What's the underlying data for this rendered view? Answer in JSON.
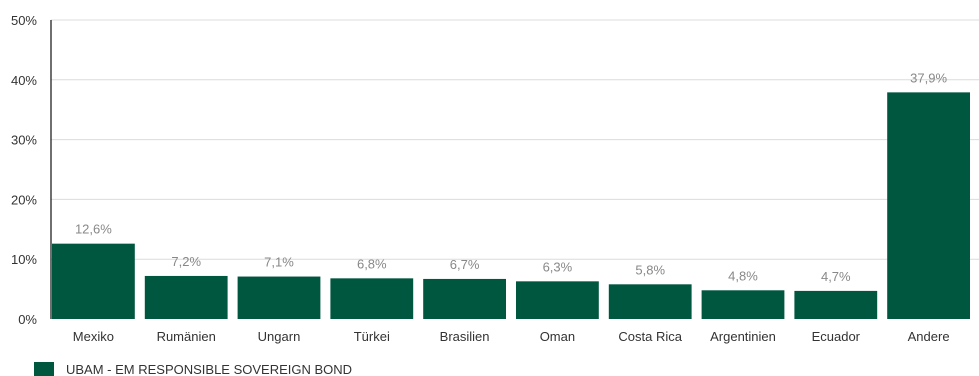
{
  "chart_data": {
    "type": "bar",
    "categories": [
      "Mexiko",
      "Rumänien",
      "Ungarn",
      "Türkei",
      "Brasilien",
      "Oman",
      "Costa Rica",
      "Argentinien",
      "Ecuador",
      "Andere"
    ],
    "series": [
      {
        "name": "UBAM - EM RESPONSIBLE SOVEREIGN BOND",
        "values": [
          12.6,
          7.2,
          7.1,
          6.8,
          6.7,
          6.3,
          5.8,
          4.8,
          4.7,
          37.9
        ],
        "labels": [
          "12,6%",
          "7,2%",
          "7,1%",
          "6,8%",
          "6,7%",
          "6,3%",
          "5,8%",
          "4,8%",
          "4,7%",
          "37,9%"
        ],
        "color": "#00573f"
      }
    ],
    "y_ticks": [
      0,
      10,
      20,
      30,
      40,
      50
    ],
    "y_tick_labels": [
      "0%",
      "10%",
      "20%",
      "30%",
      "40%",
      "50%"
    ],
    "ylim": [
      0,
      50
    ],
    "grid": true,
    "legend_position": "bottom-left"
  }
}
